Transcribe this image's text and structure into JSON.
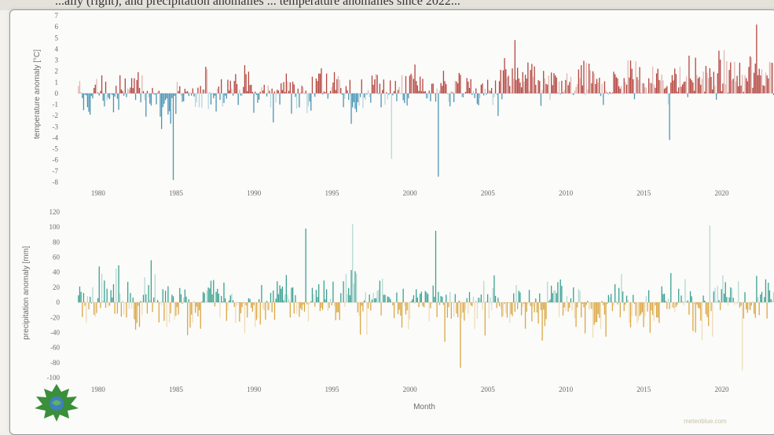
{
  "caption_fragment": "...ally (right), and precipitation anomalies ... temperature anomalies since 2022...",
  "credit": "meteoblue.com",
  "logo_text": "",
  "chart_data": [
    {
      "type": "bar",
      "title": "",
      "ylabel": "temperature anomaly [°C]",
      "xlabel": "",
      "ylim": [
        -8,
        7
      ],
      "yticks": [
        7,
        6,
        5,
        4,
        3,
        2,
        1,
        0,
        -1,
        -2,
        -3,
        -4,
        -5,
        -6,
        -7,
        -8
      ],
      "xticks": [
        "1980",
        "1985",
        "1990",
        "1995",
        "2000",
        "2005",
        "2010",
        "2015",
        "2020"
      ],
      "x_range": [
        1979.0,
        2023.0
      ],
      "colors": {
        "positive": "#b03a34",
        "negative": "#3f8eb0"
      },
      "annual_mean_anomaly": [
        -0.6,
        0.2,
        -0.4,
        0.6,
        0.3,
        -1.2,
        -0.4,
        -0.8,
        0.2,
        0.6,
        0.7,
        0.0,
        -0.2,
        0.9,
        -0.3,
        1.2,
        0.4,
        -0.7,
        0.1,
        0.5,
        0.2,
        1.0,
        0.3,
        0.6,
        0.5,
        0.1,
        0.0,
        1.1,
        1.2,
        0.6,
        0.5,
        0.4,
        0.9,
        0.7,
        0.8,
        1.3,
        1.1,
        1.0,
        1.2,
        1.4,
        1.3,
        1.6,
        1.2,
        1.8,
        1.9
      ],
      "notable_extremes": [
        {
          "x": 1985.1,
          "y": -7.8
        },
        {
          "x": 1999.1,
          "y": -5.9
        },
        {
          "x": 2002.1,
          "y": -7.5
        },
        {
          "x": 2007.0,
          "y": 4.8
        },
        {
          "x": 2016.9,
          "y": -4.2
        },
        {
          "x": 2022.5,
          "y": 6.2
        }
      ]
    },
    {
      "type": "bar",
      "title": "",
      "ylabel": "precipitation anomaly [mm]",
      "xlabel": "Month",
      "ylim": [
        -100,
        120
      ],
      "yticks": [
        120,
        100,
        80,
        60,
        40,
        20,
        0,
        -20,
        -40,
        -60,
        -80,
        -100
      ],
      "xticks": [
        "1980",
        "1985",
        "1990",
        "1995",
        "2000",
        "2005",
        "2010",
        "2015",
        "2020"
      ],
      "x_range": [
        1979.0,
        2023.0
      ],
      "colors": {
        "positive": "#2e9c8a",
        "negative": "#d9a23a"
      },
      "annual_mean_anomaly": [
        8,
        12,
        4,
        -6,
        10,
        -4,
        6,
        -8,
        14,
        -2,
        -10,
        -12,
        2,
        6,
        -8,
        10,
        -4,
        14,
        -6,
        8,
        2,
        -4,
        10,
        -12,
        -14,
        -6,
        4,
        -8,
        -10,
        -2,
        6,
        -10,
        -4,
        -6,
        6,
        -4,
        -8,
        -2,
        8,
        -10,
        -6,
        10,
        -8,
        -12,
        8
      ],
      "notable_extremes": [
        {
          "x": 1993.6,
          "y": 98
        },
        {
          "x": 1996.6,
          "y": 104
        },
        {
          "x": 2001.9,
          "y": 95
        },
        {
          "x": 2003.5,
          "y": -87
        },
        {
          "x": 2019.5,
          "y": 102
        },
        {
          "x": 2021.6,
          "y": -90
        }
      ]
    }
  ]
}
